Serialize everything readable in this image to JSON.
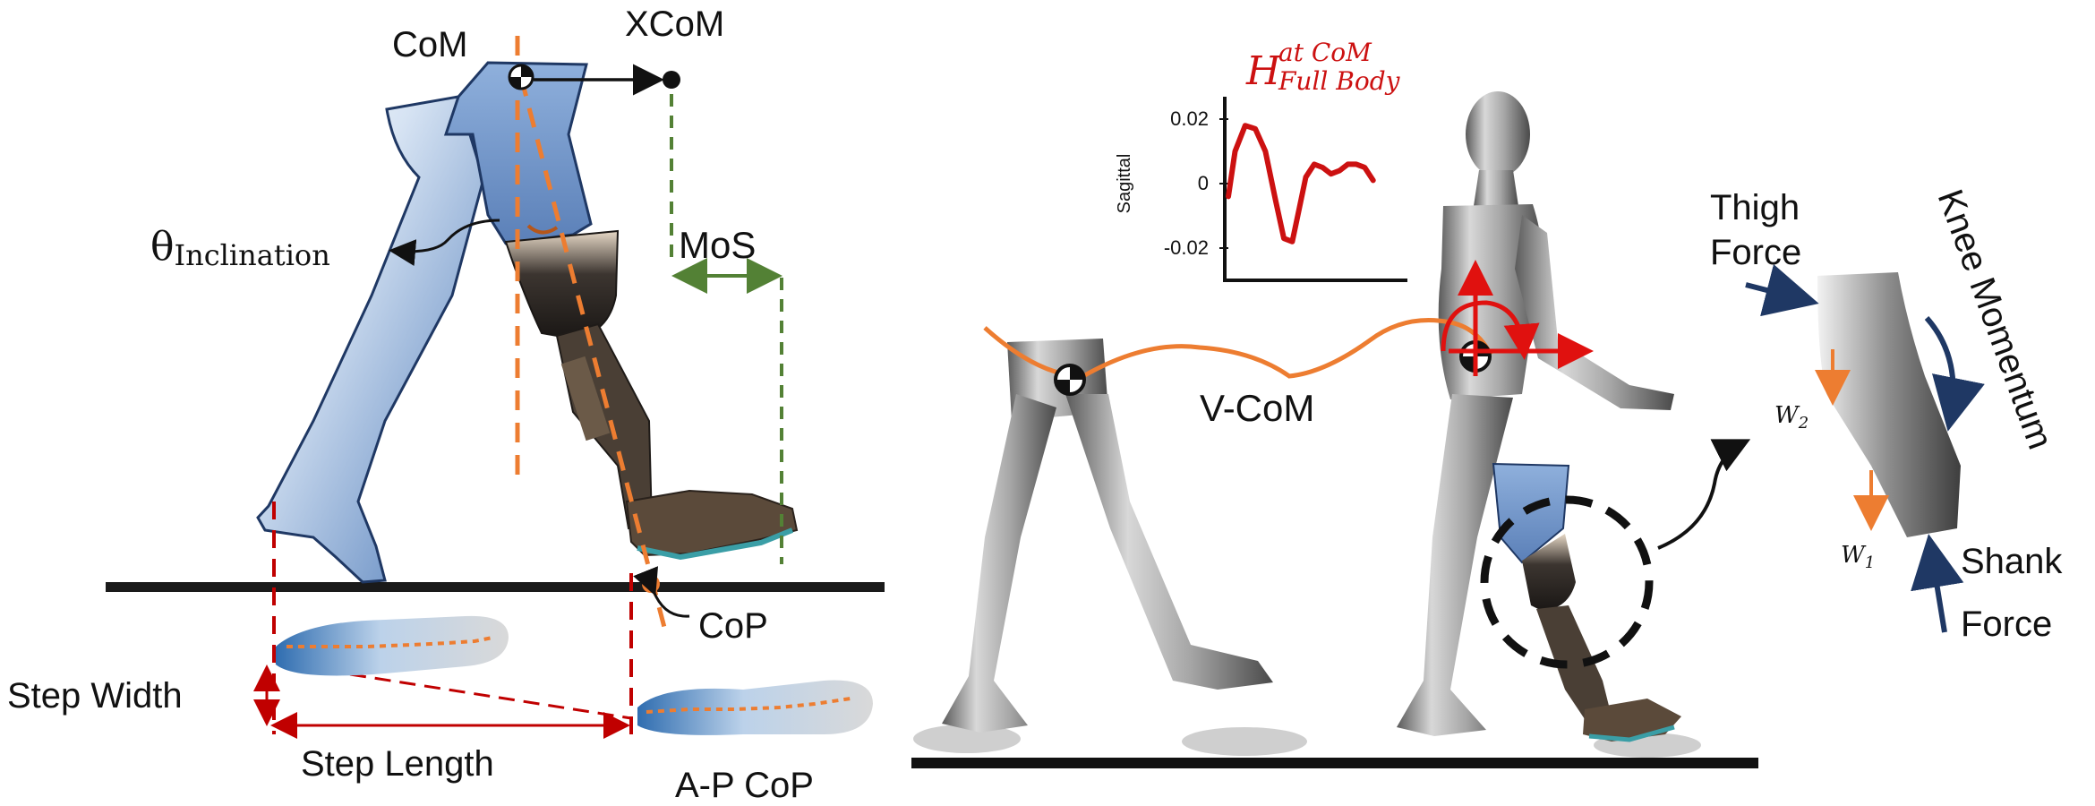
{
  "left_panel": {
    "com_label": "CoM",
    "xcom_label": "XCoM",
    "inclination_symbol": "θ",
    "inclination_subscript": "Inclination",
    "mos_label": "MoS",
    "cop_label": "CoP",
    "step_width_label": "Step Width",
    "step_length_label": "Step Length",
    "ap_cop_label": "A-P CoP"
  },
  "inset_chart": {
    "title_symbol": "H",
    "title_line1": "at CoM",
    "title_line2": "Full Body",
    "ylabel": "Sagittal",
    "yticks": [
      "0.02",
      "0",
      "-0.02"
    ]
  },
  "chart_data": {
    "type": "line",
    "title": "H at CoM Full Body",
    "ylabel": "Sagittal",
    "xlabel": "",
    "yticks": [
      0.02,
      0,
      -0.02
    ],
    "ylim": [
      -0.03,
      0.03
    ],
    "xlim": [
      0,
      1
    ],
    "grid": false,
    "series": [
      {
        "color": "#cc1111",
        "x": [
          0.0,
          0.04,
          0.1,
          0.16,
          0.22,
          0.28,
          0.33,
          0.38,
          0.42,
          0.46,
          0.51,
          0.56,
          0.61,
          0.66,
          0.71,
          0.76,
          0.81,
          0.86
        ],
        "y": [
          -0.004,
          0.01,
          0.018,
          0.017,
          0.01,
          -0.005,
          -0.017,
          -0.018,
          -0.008,
          0.002,
          0.006,
          0.005,
          0.003,
          0.004,
          0.006,
          0.006,
          0.005,
          0.001
        ]
      }
    ]
  },
  "right_panel": {
    "vcom_label": "V-CoM",
    "thigh_force_line1": "Thigh",
    "thigh_force_line2": "Force",
    "knee_momentum_label": "Knee Momentum",
    "shank_force_line1": "Shank",
    "shank_force_line2": "Force",
    "w2_symbol": "W",
    "w2_sub": "2",
    "w1_symbol": "W",
    "w1_sub": "1"
  },
  "colors": {
    "orange": "#ed7d31",
    "green": "#538135",
    "dark_red": "#c00000",
    "navy": "#1f3864",
    "limb_blue": "#6f93c6",
    "chart_red": "#cc1111"
  }
}
